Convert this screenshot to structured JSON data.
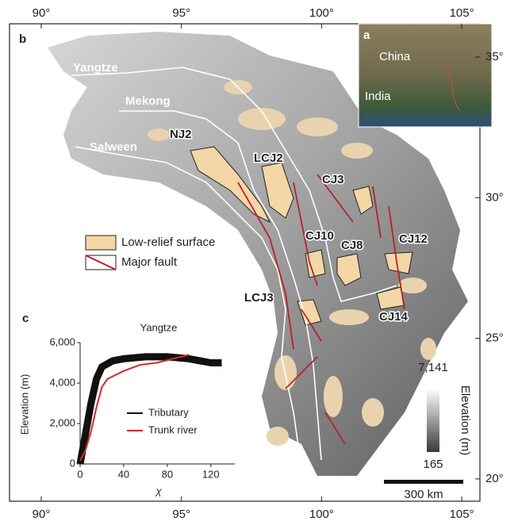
{
  "map": {
    "panel": "b",
    "lon_ticks": [
      {
        "value": 90,
        "label": "90°"
      },
      {
        "value": 95,
        "label": "95°"
      },
      {
        "value": 100,
        "label": "100°"
      },
      {
        "value": 105,
        "label": "105°"
      }
    ],
    "lat_ticks": [
      {
        "value": 35,
        "label": "35°"
      },
      {
        "value": 30,
        "label": "30°"
      },
      {
        "value": 25,
        "label": "25°"
      },
      {
        "value": 20,
        "label": "20°"
      }
    ],
    "rivers": [
      "Yangtze",
      "Mekong",
      "Salween"
    ],
    "sites": [
      "NJ2",
      "LCJ2",
      "CJ3",
      "CJ10",
      "CJ8",
      "CJ12",
      "LCJ3",
      "CJ14"
    ],
    "legend": [
      "Low-relief surface",
      "Major fault"
    ],
    "colorbar": {
      "title": "Elevation (m)",
      "max": {
        "value": 7141,
        "label": "7,141"
      },
      "min": 165
    },
    "scale_bar": "300 km"
  },
  "inset": {
    "panel": "a",
    "labels": [
      "China",
      "India"
    ]
  },
  "chart_data": {
    "type": "line",
    "panel": "c",
    "title": "Yangtze",
    "x_label": "χ",
    "y_label": "Elevation (m)",
    "xlim": [
      0,
      142
    ],
    "ylim": [
      0,
      6000
    ],
    "xticks": [
      0,
      40,
      80,
      120
    ],
    "yticks": [
      0,
      {
        "value": 2000,
        "label": "2,000"
      },
      {
        "value": 4000,
        "label": "4,000"
      },
      {
        "value": 6000,
        "label": "6,000"
      }
    ],
    "series": [
      {
        "name": "Tributary",
        "color": "#111111",
        "x": [
          0,
          5,
          10,
          15,
          20,
          30,
          40,
          60,
          80,
          100,
          120,
          130
        ],
        "values": [
          0,
          1500,
          3000,
          4200,
          4800,
          5100,
          5200,
          5300,
          5300,
          5200,
          5000,
          5000
        ]
      },
      {
        "name": "Trunk river",
        "color": "#d42a2a",
        "x": [
          0,
          5,
          10,
          15,
          20,
          25,
          40,
          55,
          70,
          85,
          100
        ],
        "values": [
          150,
          700,
          1600,
          2800,
          3800,
          4200,
          4600,
          4900,
          5000,
          5200,
          5400
        ]
      }
    ]
  }
}
